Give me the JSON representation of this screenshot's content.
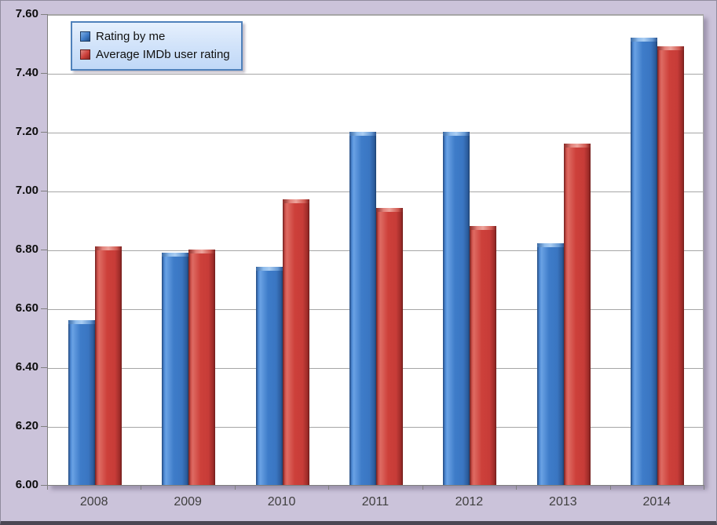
{
  "chart_data": {
    "type": "bar",
    "title": "",
    "xlabel": "",
    "ylabel": "",
    "categories": [
      "2008",
      "2009",
      "2010",
      "2011",
      "2012",
      "2013",
      "2014"
    ],
    "series": [
      {
        "name": "Rating by me",
        "color_hex": "#3E7CC9",
        "values": [
          6.56,
          6.79,
          6.74,
          7.2,
          7.2,
          6.82,
          7.52
        ]
      },
      {
        "name": "Average IMDb user rating",
        "color_hex": "#CD403A",
        "values": [
          6.81,
          6.8,
          6.97,
          6.94,
          6.88,
          7.16,
          7.49
        ]
      }
    ],
    "ylim": [
      6.0,
      7.6
    ],
    "ytick_step": 0.2,
    "ytick_labels": [
      "7.60",
      "7.40",
      "7.20",
      "7.00",
      "6.80",
      "6.60",
      "6.40",
      "6.20",
      "6.00"
    ],
    "grid": true,
    "legend_position": "top-left"
  },
  "colors": {
    "background": "#CBC3DA",
    "plot_background": "#FFFFFF",
    "gridline": "#A6A6A6",
    "axis_line": "#7F7F7F",
    "series_blue": "#3E7CC9",
    "series_red": "#CD403A",
    "legend_border": "#4F81BB",
    "legend_background": "#D3E4FA"
  }
}
